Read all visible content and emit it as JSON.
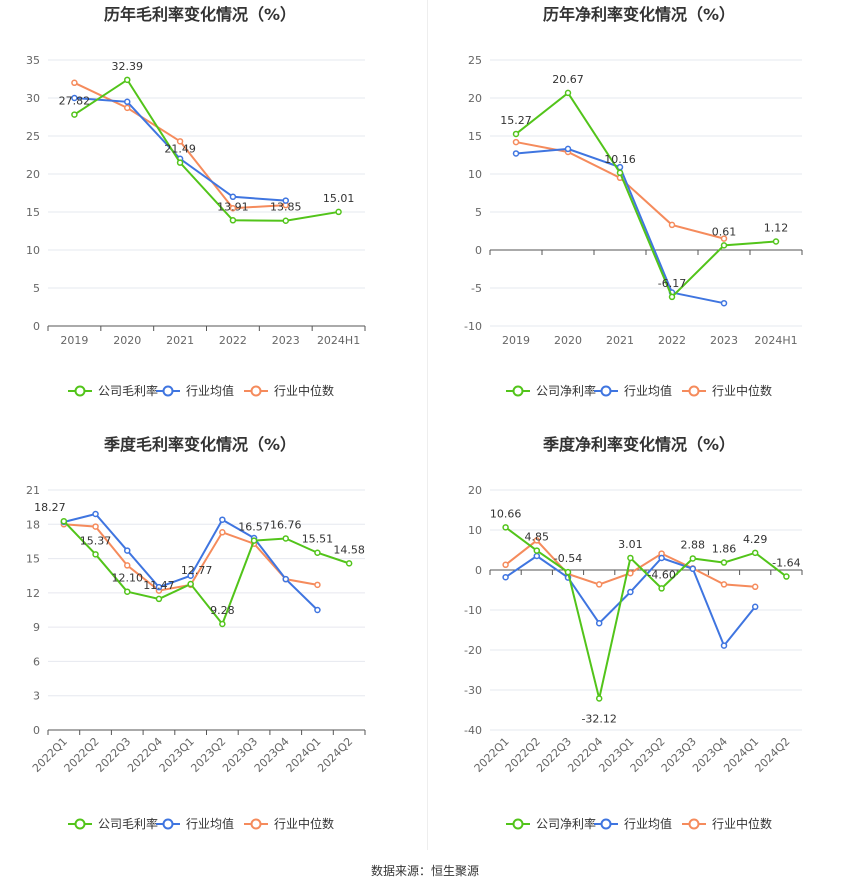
{
  "colors": {
    "company": "#52c41a",
    "industry_avg": "#3f75e0",
    "industry_median": "#f58b5c"
  },
  "legend_labels": {
    "gross": [
      "公司毛利率",
      "行业均值",
      "行业中位数"
    ],
    "net": [
      "公司净利率",
      "行业均值",
      "行业中位数"
    ]
  },
  "source": "数据来源：恒生聚源",
  "chart_data": [
    {
      "type": "line",
      "title": "历年毛利率变化情况（%）",
      "categories": [
        "2019",
        "2020",
        "2021",
        "2022",
        "2023",
        "2024H1"
      ],
      "ylim": [
        0,
        35
      ],
      "yticks": [
        0,
        5,
        10,
        15,
        20,
        25,
        30,
        35
      ],
      "series": [
        {
          "name": "公司毛利率",
          "values": [
            27.82,
            32.39,
            21.49,
            13.91,
            13.85,
            15.01
          ]
        },
        {
          "name": "行业均值",
          "values": [
            30.0,
            29.5,
            22.0,
            17.0,
            16.5,
            null
          ]
        },
        {
          "name": "行业中位数",
          "values": [
            32.0,
            28.7,
            24.3,
            15.5,
            15.9,
            null
          ]
        }
      ],
      "labels": [
        "27.82",
        "32.39",
        "21.49",
        "13.91",
        "13.85",
        "15.01"
      ]
    },
    {
      "type": "line",
      "title": "历年净利率变化情况（%）",
      "categories": [
        "2019",
        "2020",
        "2021",
        "2022",
        "2023",
        "2024H1"
      ],
      "ylim": [
        -10,
        25
      ],
      "yticks": [
        -10,
        -5,
        0,
        5,
        10,
        15,
        20,
        25
      ],
      "series": [
        {
          "name": "公司净利率",
          "values": [
            15.27,
            20.67,
            10.16,
            -6.17,
            0.61,
            1.12
          ]
        },
        {
          "name": "行业均值",
          "values": [
            12.7,
            13.3,
            10.9,
            -5.6,
            -7.0,
            null
          ]
        },
        {
          "name": "行业中位数",
          "values": [
            14.2,
            12.9,
            9.5,
            3.3,
            1.5,
            null
          ]
        }
      ],
      "labels": [
        "15.27",
        "20.67",
        "10.16",
        "-6.17",
        "0.61",
        "1.12"
      ]
    },
    {
      "type": "line",
      "title": "季度毛利率变化情况（%）",
      "categories": [
        "2022Q1",
        "2022Q2",
        "2022Q3",
        "2022Q4",
        "2023Q1",
        "2023Q2",
        "2023Q3",
        "2023Q4",
        "2024Q1",
        "2024Q2"
      ],
      "ylim": [
        0,
        21
      ],
      "yticks": [
        0,
        3,
        6,
        9,
        12,
        15,
        18,
        21
      ],
      "series": [
        {
          "name": "公司毛利率",
          "values": [
            18.27,
            15.37,
            12.1,
            11.47,
            12.77,
            9.28,
            16.57,
            16.76,
            15.51,
            14.58
          ]
        },
        {
          "name": "行业均值",
          "values": [
            18.2,
            18.9,
            15.7,
            12.5,
            13.5,
            18.4,
            16.8,
            13.2,
            10.5,
            null
          ]
        },
        {
          "name": "行业中位数",
          "values": [
            18.0,
            17.8,
            14.4,
            12.2,
            12.7,
            17.3,
            16.3,
            13.2,
            12.7,
            null
          ]
        }
      ],
      "labels": [
        "18.27",
        "15.37",
        "12.10",
        "11.47",
        "12.77",
        "9.28",
        "16.57",
        "16.76",
        "15.51",
        "14.58"
      ]
    },
    {
      "type": "line",
      "title": "季度净利率变化情况（%）",
      "categories": [
        "2022Q1",
        "2022Q2",
        "2022Q3",
        "2022Q4",
        "2023Q1",
        "2023Q2",
        "2023Q3",
        "2023Q4",
        "2024Q1",
        "2024Q2"
      ],
      "ylim": [
        -40,
        20
      ],
      "yticks": [
        -40,
        -30,
        -20,
        -10,
        0,
        10,
        20
      ],
      "series": [
        {
          "name": "公司净利率",
          "values": [
            10.66,
            4.85,
            -0.54,
            -32.12,
            3.01,
            -4.6,
            2.88,
            1.86,
            4.29,
            -1.64
          ]
        },
        {
          "name": "行业均值",
          "values": [
            -1.8,
            3.5,
            -1.9,
            -13.3,
            -5.5,
            3.0,
            0.3,
            -18.9,
            -9.2,
            null
          ]
        },
        {
          "name": "行业中位数",
          "values": [
            1.3,
            7.4,
            -1.0,
            -3.6,
            -0.8,
            4.1,
            0.4,
            -3.6,
            -4.2,
            null
          ]
        }
      ],
      "labels": [
        "10.66",
        "4.85",
        "-0.54",
        "-32.12",
        "3.01",
        "-4.60",
        "2.88",
        "1.86",
        "4.29",
        "-1.64"
      ]
    }
  ]
}
